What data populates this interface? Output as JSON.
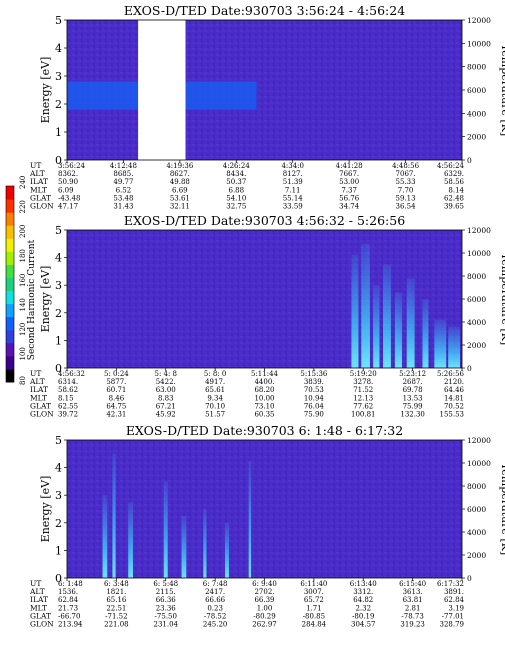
{
  "colorbar": {
    "label": "Second Harmonic Current",
    "ticks": [
      "80",
      "100",
      "120",
      "140",
      "160",
      "180",
      "200",
      "220",
      "240"
    ],
    "colors": [
      "#000000",
      "#3c0090",
      "#5a12b4",
      "#3040e0",
      "#1060ff",
      "#10a0ff",
      "#10e0e0",
      "#20d080",
      "#40e040",
      "#a0f000",
      "#f0f000",
      "#f8c000",
      "#ff8000",
      "#ff3000",
      "#f00000"
    ]
  },
  "panels": [
    {
      "title": "EXOS-D/TED   Date:930703  3:56:24 - 4:56:24",
      "ylabel": "Energy [eV]",
      "y2label": "Temperature [K]",
      "yticks": [
        "0",
        "1",
        "2",
        "3",
        "4",
        "5"
      ],
      "y2ticks": [
        "0",
        "2000",
        "4000",
        "6000",
        "8000",
        "10000",
        "12000"
      ],
      "gap": [
        0.18,
        0.3
      ],
      "background": "#4a2cc8",
      "band": {
        "from": 1.8,
        "to": 2.8,
        "until": 0.48,
        "color": "#1a5cf0"
      },
      "streaks": [],
      "rows": [
        {
          "label": "UT",
          "values": [
            "3:56:24",
            "4:12:48",
            "4:19:36",
            "4:26:24",
            "4:34:0",
            "4:41:28",
            "4:48:56",
            "4:56:24"
          ]
        },
        {
          "label": "ALT",
          "values": [
            "8362.",
            "8685.",
            "8627.",
            "8434.",
            "8127.",
            "7667.",
            "7067.",
            "6329."
          ]
        },
        {
          "label": "ILAT",
          "values": [
            "50.90",
            "49.77",
            "49.88",
            "50.37",
            "51.39",
            "53.00",
            "55.33",
            "58.56"
          ]
        },
        {
          "label": "MLT",
          "values": [
            "6.09",
            "6.52",
            "6.69",
            "6.88",
            "7.11",
            "7.37",
            "7.70",
            "8.14"
          ]
        },
        {
          "label": "GLAT",
          "values": [
            "-43.48",
            "53.48",
            "53.61",
            "54.10",
            "55.14",
            "56.76",
            "59.13",
            "62.48"
          ]
        },
        {
          "label": "GLON",
          "values": [
            "47.17",
            "31.43",
            "32.11",
            "32.75",
            "33.59",
            "34.74",
            "36.54",
            "39.65"
          ]
        }
      ]
    },
    {
      "title": "EXOS-D/TED   Date:930703  4:56:32 - 5:26:56",
      "ylabel": "Energy [eV]",
      "y2label": "Temperature [K]",
      "yticks": [
        "0",
        "1",
        "2",
        "3",
        "4",
        "5"
      ],
      "y2ticks": [
        "0",
        "2000",
        "4000",
        "6000",
        "8000",
        "10000",
        "12000"
      ],
      "gap": null,
      "background": "#4a2cc8",
      "band": null,
      "streaks": [
        {
          "x": 0.72,
          "w": 0.018,
          "h": 0.82
        },
        {
          "x": 0.745,
          "w": 0.022,
          "h": 0.9
        },
        {
          "x": 0.775,
          "w": 0.016,
          "h": 0.6
        },
        {
          "x": 0.8,
          "w": 0.02,
          "h": 0.75
        },
        {
          "x": 0.83,
          "w": 0.018,
          "h": 0.55
        },
        {
          "x": 0.86,
          "w": 0.02,
          "h": 0.65
        },
        {
          "x": 0.9,
          "w": 0.015,
          "h": 0.5
        },
        {
          "x": 0.93,
          "w": 0.03,
          "h": 0.35
        },
        {
          "x": 0.965,
          "w": 0.03,
          "h": 0.3
        }
      ],
      "rows": [
        {
          "label": "UT",
          "values": [
            "4:56:32",
            "5: 0:24",
            "5: 4: 8",
            "5: 8: 0",
            "5:11:44",
            "5:15:36",
            "5:19:20",
            "5:23:12",
            "5:26:56"
          ]
        },
        {
          "label": "ALT",
          "values": [
            "6314.",
            "5877.",
            "5422.",
            "4917.",
            "4400.",
            "3839.",
            "3278.",
            "2687.",
            "2120."
          ]
        },
        {
          "label": "ILAT",
          "values": [
            "58.62",
            "60.71",
            "63.00",
            "65.61",
            "68.20",
            "70.53",
            "71.52",
            "69.78",
            "64.46"
          ]
        },
        {
          "label": "MLT",
          "values": [
            "8.15",
            "8.46",
            "8.83",
            "9.34",
            "10.00",
            "10.94",
            "12.13",
            "13.53",
            "14.81"
          ]
        },
        {
          "label": "GLAT",
          "values": [
            "62.55",
            "64.75",
            "67.21",
            "70.10",
            "73.10",
            "76.04",
            "77.62",
            "75.99",
            "70.52"
          ]
        },
        {
          "label": "GLON",
          "values": [
            "39.72",
            "42.31",
            "45.92",
            "51.57",
            "60.35",
            "75.90",
            "100.81",
            "132.30",
            "155.53"
          ]
        }
      ]
    },
    {
      "title": "EXOS-D/TED   Date:930703  6: 1:48 - 6:17:32",
      "ylabel": "Energy [eV]",
      "y2label": "Temperature [K]",
      "yticks": [
        "0",
        "1",
        "2",
        "3",
        "4",
        "5"
      ],
      "y2ticks": [
        "0",
        "2000",
        "4000",
        "6000",
        "8000",
        "10000",
        "12000"
      ],
      "gap": null,
      "background": "#4a2cc8",
      "band": null,
      "streaks": [
        {
          "x": 0.09,
          "w": 0.012,
          "h": 0.6
        },
        {
          "x": 0.115,
          "w": 0.008,
          "h": 0.9
        },
        {
          "x": 0.155,
          "w": 0.012,
          "h": 0.55
        },
        {
          "x": 0.245,
          "w": 0.01,
          "h": 0.7
        },
        {
          "x": 0.29,
          "w": 0.012,
          "h": 0.45
        },
        {
          "x": 0.345,
          "w": 0.008,
          "h": 0.5
        },
        {
          "x": 0.4,
          "w": 0.01,
          "h": 0.4
        },
        {
          "x": 0.46,
          "w": 0.006,
          "h": 0.85
        }
      ],
      "rows": [
        {
          "label": "UT",
          "values": [
            "6: 1:48",
            "6: 3:48",
            "6: 5:48",
            "6: 7:48",
            "6: 9:40",
            "6:11:40",
            "6:13:40",
            "6:15:40",
            "6:17:32"
          ]
        },
        {
          "label": "ALT",
          "values": [
            "1536.",
            "1821.",
            "2115.",
            "2417.",
            "2702.",
            "3007.",
            "3312.",
            "3613.",
            "3891."
          ]
        },
        {
          "label": "ILAT",
          "values": [
            "62.84",
            "65.16",
            "66.36",
            "66.66",
            "66.39",
            "65.72",
            "64.82",
            "63.81",
            "62.84"
          ]
        },
        {
          "label": "MLT",
          "values": [
            "21.73",
            "22.51",
            "23.36",
            "0.23",
            "1.00",
            "1.71",
            "2.32",
            "2.81",
            "3.19"
          ]
        },
        {
          "label": "GLAT",
          "values": [
            "-66.70",
            "-71.52",
            "-75.50",
            "-78.52",
            "-80.29",
            "-80.85",
            "-80.19",
            "-78.73",
            "-77.01"
          ]
        },
        {
          "label": "GLON",
          "values": [
            "213.94",
            "221.08",
            "231.04",
            "245.20",
            "262.97",
            "284.84",
            "304.57",
            "319.23",
            "328.79"
          ]
        }
      ]
    }
  ]
}
